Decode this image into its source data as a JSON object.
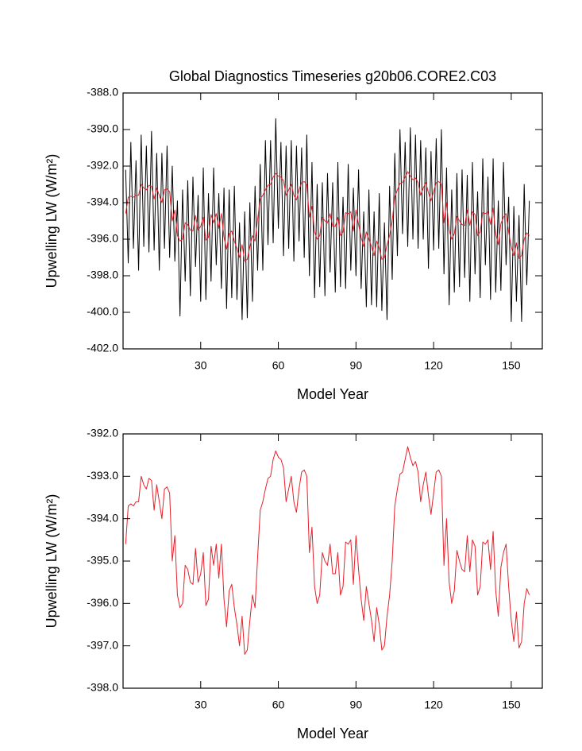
{
  "chart_data": [
    {
      "type": "line",
      "title": "Global Diagnostics Timeseries g20b06.CORE2.C03",
      "xlabel": "Model Year",
      "ylabel": "Upwelling LW (W/m²)",
      "x": [
        1,
        2,
        3,
        4,
        5,
        6,
        7,
        8,
        9,
        10,
        11,
        12,
        13,
        14,
        15,
        16,
        17,
        18,
        19,
        20,
        21,
        22,
        23,
        24,
        25,
        26,
        27,
        28,
        29,
        30,
        31,
        32,
        33,
        34,
        35,
        36,
        37,
        38,
        39,
        40,
        41,
        42,
        43,
        44,
        45,
        46,
        47,
        48,
        49,
        50,
        51,
        52,
        53,
        54,
        55,
        56,
        57,
        58,
        59,
        60,
        61,
        62,
        63,
        64,
        65,
        66,
        67,
        68,
        69,
        70,
        71,
        72,
        73,
        74,
        75,
        76,
        77,
        78,
        79,
        80,
        81,
        82,
        83,
        84,
        85,
        86,
        87,
        88,
        89,
        90,
        91,
        92,
        93,
        94,
        95,
        96,
        97,
        98,
        99,
        100,
        101,
        102,
        103,
        104,
        105,
        106,
        107,
        108,
        109,
        110,
        111,
        112,
        113,
        114,
        115,
        116,
        117,
        118,
        119,
        120,
        121,
        122,
        123,
        124,
        125,
        126,
        127,
        128,
        129,
        130,
        131,
        132,
        133,
        134,
        135,
        136,
        137,
        138,
        139,
        140,
        141,
        142,
        143,
        144,
        145,
        146,
        147,
        148,
        149,
        150,
        151,
        152,
        153,
        154,
        155,
        156,
        157
      ],
      "series": [
        {
          "color": "#000000",
          "values": [
            -392.2,
            -397.3,
            -390.7,
            -396.5,
            -391.7,
            -397.7,
            -390.3,
            -396.4,
            -390.9,
            -396.7,
            -390.1,
            -396.6,
            -391.3,
            -397.7,
            -391.3,
            -396.5,
            -390.9,
            -397.0,
            -392.0,
            -397.2,
            -393.9,
            -400.2,
            -393.3,
            -398.3,
            -392.8,
            -399.1,
            -392.6,
            -397.5,
            -393.6,
            -399.4,
            -392.1,
            -399.3,
            -393.5,
            -398.3,
            -392.1,
            -397.4,
            -393.5,
            -398.7,
            -393.2,
            -399.8,
            -393.3,
            -399.2,
            -393.1,
            -399.3,
            -395.1,
            -400.4,
            -394.5,
            -400.3,
            -394.0,
            -399.4,
            -393.1,
            -397.7,
            -391.9,
            -397.7,
            -390.6,
            -396.3,
            -390.6,
            -396.2,
            -389.4,
            -395.4,
            -390.7,
            -396.9,
            -390.9,
            -396.5,
            -390.6,
            -397.2,
            -390.9,
            -396.1,
            -391.0,
            -397.0,
            -390.3,
            -398.0,
            -391.8,
            -399.2,
            -393.0,
            -398.6,
            -392.9,
            -399.1,
            -392.4,
            -397.8,
            -392.9,
            -398.9,
            -391.8,
            -398.6,
            -393.7,
            -398.7,
            -391.9,
            -397.7,
            -393.2,
            -398.0,
            -392.2,
            -398.7,
            -394.5,
            -399.7,
            -393.3,
            -399.6,
            -394.5,
            -399.7,
            -393.5,
            -399.9,
            -395.1,
            -400.4,
            -393.1,
            -398.2,
            -391.3,
            -396.9,
            -390.0,
            -395.7,
            -390.7,
            -396.4,
            -389.9,
            -396.0,
            -390.3,
            -396.5,
            -390.6,
            -396.0,
            -391.0,
            -397.6,
            -391.2,
            -396.6,
            -390.5,
            -396.5,
            -390.0,
            -397.9,
            -392.1,
            -399.6,
            -393.3,
            -398.9,
            -392.4,
            -398.6,
            -392.2,
            -398.1,
            -392.5,
            -399.4,
            -391.8,
            -397.9,
            -393.4,
            -399.2,
            -391.6,
            -397.4,
            -392.6,
            -399.3,
            -391.6,
            -398.9,
            -393.9,
            -398.8,
            -391.8,
            -397.4,
            -393.7,
            -400.5,
            -394.2,
            -399.4,
            -394.7,
            -400.5,
            -393.0,
            -398.5,
            -393.9
          ]
        },
        {
          "color": "#e8202a",
          "values": [
            -394.6,
            -393.7,
            -393.65,
            -393.7,
            -393.6,
            -393.6,
            -393.0,
            -393.2,
            -393.3,
            -393.05,
            -393.1,
            -393.8,
            -393.2,
            -393.6,
            -394.0,
            -393.3,
            -393.25,
            -393.4,
            -395.0,
            -394.4,
            -395.8,
            -396.1,
            -396.0,
            -395.1,
            -395.2,
            -395.5,
            -395.55,
            -394.7,
            -395.5,
            -395.3,
            -394.8,
            -396.05,
            -395.9,
            -394.65,
            -395.1,
            -394.6,
            -395.4,
            -394.6,
            -395.9,
            -396.55,
            -395.7,
            -395.55,
            -396.1,
            -396.5,
            -397.0,
            -396.3,
            -397.2,
            -397.1,
            -396.4,
            -395.8,
            -396.1,
            -394.9,
            -393.8,
            -393.6,
            -393.3,
            -393.05,
            -393.0,
            -392.6,
            -392.4,
            -392.55,
            -392.6,
            -392.8,
            -393.6,
            -393.3,
            -393.0,
            -393.6,
            -393.85,
            -393.3,
            -392.9,
            -392.85,
            -393.0,
            -394.8,
            -394.2,
            -395.6,
            -396.0,
            -395.8,
            -394.8,
            -395.0,
            -395.1,
            -394.6,
            -395.3,
            -395.3,
            -394.8,
            -395.8,
            -395.6,
            -394.55,
            -394.6,
            -394.5,
            -395.55,
            -394.4,
            -395.2,
            -395.9,
            -396.4,
            -395.6,
            -396.0,
            -396.4,
            -396.9,
            -396.1,
            -396.5,
            -397.1,
            -397.0,
            -396.3,
            -395.8,
            -395.0,
            -393.7,
            -393.3,
            -392.95,
            -392.9,
            -392.6,
            -392.3,
            -392.55,
            -392.75,
            -392.65,
            -392.9,
            -393.6,
            -393.2,
            -392.9,
            -393.45,
            -393.9,
            -393.4,
            -392.9,
            -392.85,
            -393.0,
            -395.1,
            -394.0,
            -395.5,
            -396.0,
            -395.7,
            -394.75,
            -395.0,
            -395.2,
            -395.25,
            -394.4,
            -395.25,
            -394.5,
            -394.65,
            -395.8,
            -395.6,
            -394.55,
            -394.6,
            -394.5,
            -395.2,
            -394.3,
            -395.7,
            -396.3,
            -395.15,
            -394.8,
            -394.6,
            -395.6,
            -396.4,
            -396.9,
            -396.2,
            -397.05,
            -396.9,
            -396.0,
            -395.65,
            -395.8
          ]
        }
      ],
      "xlim": [
        0,
        162
      ],
      "xticks": [
        30,
        60,
        90,
        120,
        150
      ],
      "ylim": [
        -402,
        -388
      ],
      "yticks": [
        {
          "value": -402,
          "label": "-402.0"
        },
        {
          "value": -400,
          "label": "-400.0"
        },
        {
          "value": -398,
          "label": "-398.0"
        },
        {
          "value": -396,
          "label": "-396.0"
        },
        {
          "value": -394,
          "label": "-394.0"
        },
        {
          "value": -392,
          "label": "-392.0"
        },
        {
          "value": -390,
          "label": "-390.0"
        },
        {
          "value": -388,
          "label": "-388.0"
        }
      ]
    },
    {
      "type": "line",
      "xlabel": "Model Year",
      "ylabel": "Upwelling LW (W/m²)",
      "x": [
        1,
        2,
        3,
        4,
        5,
        6,
        7,
        8,
        9,
        10,
        11,
        12,
        13,
        14,
        15,
        16,
        17,
        18,
        19,
        20,
        21,
        22,
        23,
        24,
        25,
        26,
        27,
        28,
        29,
        30,
        31,
        32,
        33,
        34,
        35,
        36,
        37,
        38,
        39,
        40,
        41,
        42,
        43,
        44,
        45,
        46,
        47,
        48,
        49,
        50,
        51,
        52,
        53,
        54,
        55,
        56,
        57,
        58,
        59,
        60,
        61,
        62,
        63,
        64,
        65,
        66,
        67,
        68,
        69,
        70,
        71,
        72,
        73,
        74,
        75,
        76,
        77,
        78,
        79,
        80,
        81,
        82,
        83,
        84,
        85,
        86,
        87,
        88,
        89,
        90,
        91,
        92,
        93,
        94,
        95,
        96,
        97,
        98,
        99,
        100,
        101,
        102,
        103,
        104,
        105,
        106,
        107,
        108,
        109,
        110,
        111,
        112,
        113,
        114,
        115,
        116,
        117,
        118,
        119,
        120,
        121,
        122,
        123,
        124,
        125,
        126,
        127,
        128,
        129,
        130,
        131,
        132,
        133,
        134,
        135,
        136,
        137,
        138,
        139,
        140,
        141,
        142,
        143,
        144,
        145,
        146,
        147,
        148,
        149,
        150,
        151,
        152,
        153,
        154,
        155,
        156,
        157
      ],
      "series": [
        {
          "color": "#e8202a",
          "values": [
            -394.6,
            -393.7,
            -393.65,
            -393.7,
            -393.6,
            -393.6,
            -393.0,
            -393.2,
            -393.3,
            -393.05,
            -393.1,
            -393.8,
            -393.2,
            -393.6,
            -394.0,
            -393.3,
            -393.25,
            -393.4,
            -395.0,
            -394.4,
            -395.8,
            -396.1,
            -396.0,
            -395.1,
            -395.2,
            -395.5,
            -395.55,
            -394.7,
            -395.5,
            -395.3,
            -394.8,
            -396.05,
            -395.9,
            -394.65,
            -395.1,
            -394.6,
            -395.4,
            -394.6,
            -395.9,
            -396.55,
            -395.7,
            -395.55,
            -396.1,
            -396.5,
            -397.0,
            -396.3,
            -397.2,
            -397.1,
            -396.4,
            -395.8,
            -396.1,
            -394.9,
            -393.8,
            -393.6,
            -393.3,
            -393.05,
            -393.0,
            -392.6,
            -392.4,
            -392.55,
            -392.6,
            -392.8,
            -393.6,
            -393.3,
            -393.0,
            -393.6,
            -393.85,
            -393.3,
            -392.9,
            -392.85,
            -393.0,
            -394.8,
            -394.2,
            -395.6,
            -396.0,
            -395.8,
            -394.8,
            -395.0,
            -395.1,
            -394.6,
            -395.3,
            -395.3,
            -394.8,
            -395.8,
            -395.6,
            -394.55,
            -394.6,
            -394.5,
            -395.55,
            -394.4,
            -395.2,
            -395.9,
            -396.4,
            -395.6,
            -396.0,
            -396.4,
            -396.9,
            -396.1,
            -396.5,
            -397.1,
            -397.0,
            -396.3,
            -395.8,
            -395.0,
            -393.7,
            -393.3,
            -392.95,
            -392.9,
            -392.6,
            -392.3,
            -392.55,
            -392.75,
            -392.65,
            -392.9,
            -393.6,
            -393.2,
            -392.9,
            -393.45,
            -393.9,
            -393.4,
            -392.9,
            -392.85,
            -393.0,
            -395.1,
            -394.0,
            -395.5,
            -396.0,
            -395.7,
            -394.75,
            -395.0,
            -395.2,
            -395.25,
            -394.4,
            -395.25,
            -394.5,
            -394.65,
            -395.8,
            -395.6,
            -394.55,
            -394.6,
            -394.5,
            -395.2,
            -394.3,
            -395.7,
            -396.3,
            -395.15,
            -394.8,
            -394.6,
            -395.6,
            -396.4,
            -396.9,
            -396.2,
            -397.05,
            -396.9,
            -396.0,
            -395.65,
            -395.8
          ]
        }
      ],
      "xlim": [
        0,
        162
      ],
      "xticks": [
        30,
        60,
        90,
        120,
        150
      ],
      "ylim": [
        -398,
        -392
      ],
      "yticks": [
        {
          "value": -398,
          "label": "-398.0"
        },
        {
          "value": -397,
          "label": "-397.0"
        },
        {
          "value": -396,
          "label": "-396.0"
        },
        {
          "value": -395,
          "label": "-395.0"
        },
        {
          "value": -394,
          "label": "-394.0"
        },
        {
          "value": -393,
          "label": "-393.0"
        },
        {
          "value": -392,
          "label": "-392.0"
        }
      ]
    }
  ]
}
